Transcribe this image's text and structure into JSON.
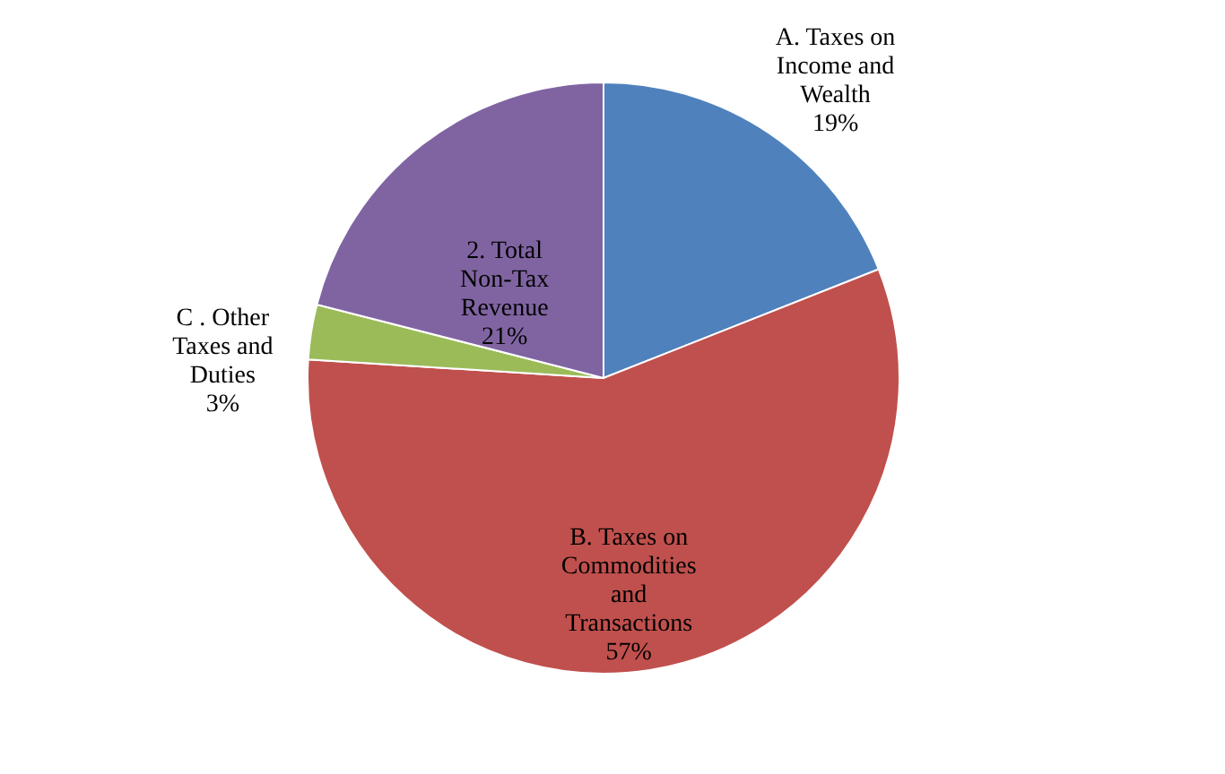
{
  "chart_data": {
    "type": "pie",
    "categories": [
      "A. Taxes on Income and Wealth",
      "B. Taxes on Commodities and Transactions",
      "C . Other Taxes and Duties",
      "2. Total Non-Tax Revenue"
    ],
    "values": [
      19,
      57,
      3,
      21
    ],
    "value_labels": [
      "19%",
      "57%",
      "3%",
      "21%"
    ],
    "colors": [
      "#4f81bd",
      "#c0504d",
      "#9bbb59",
      "#8064a2"
    ],
    "legend": false
  }
}
